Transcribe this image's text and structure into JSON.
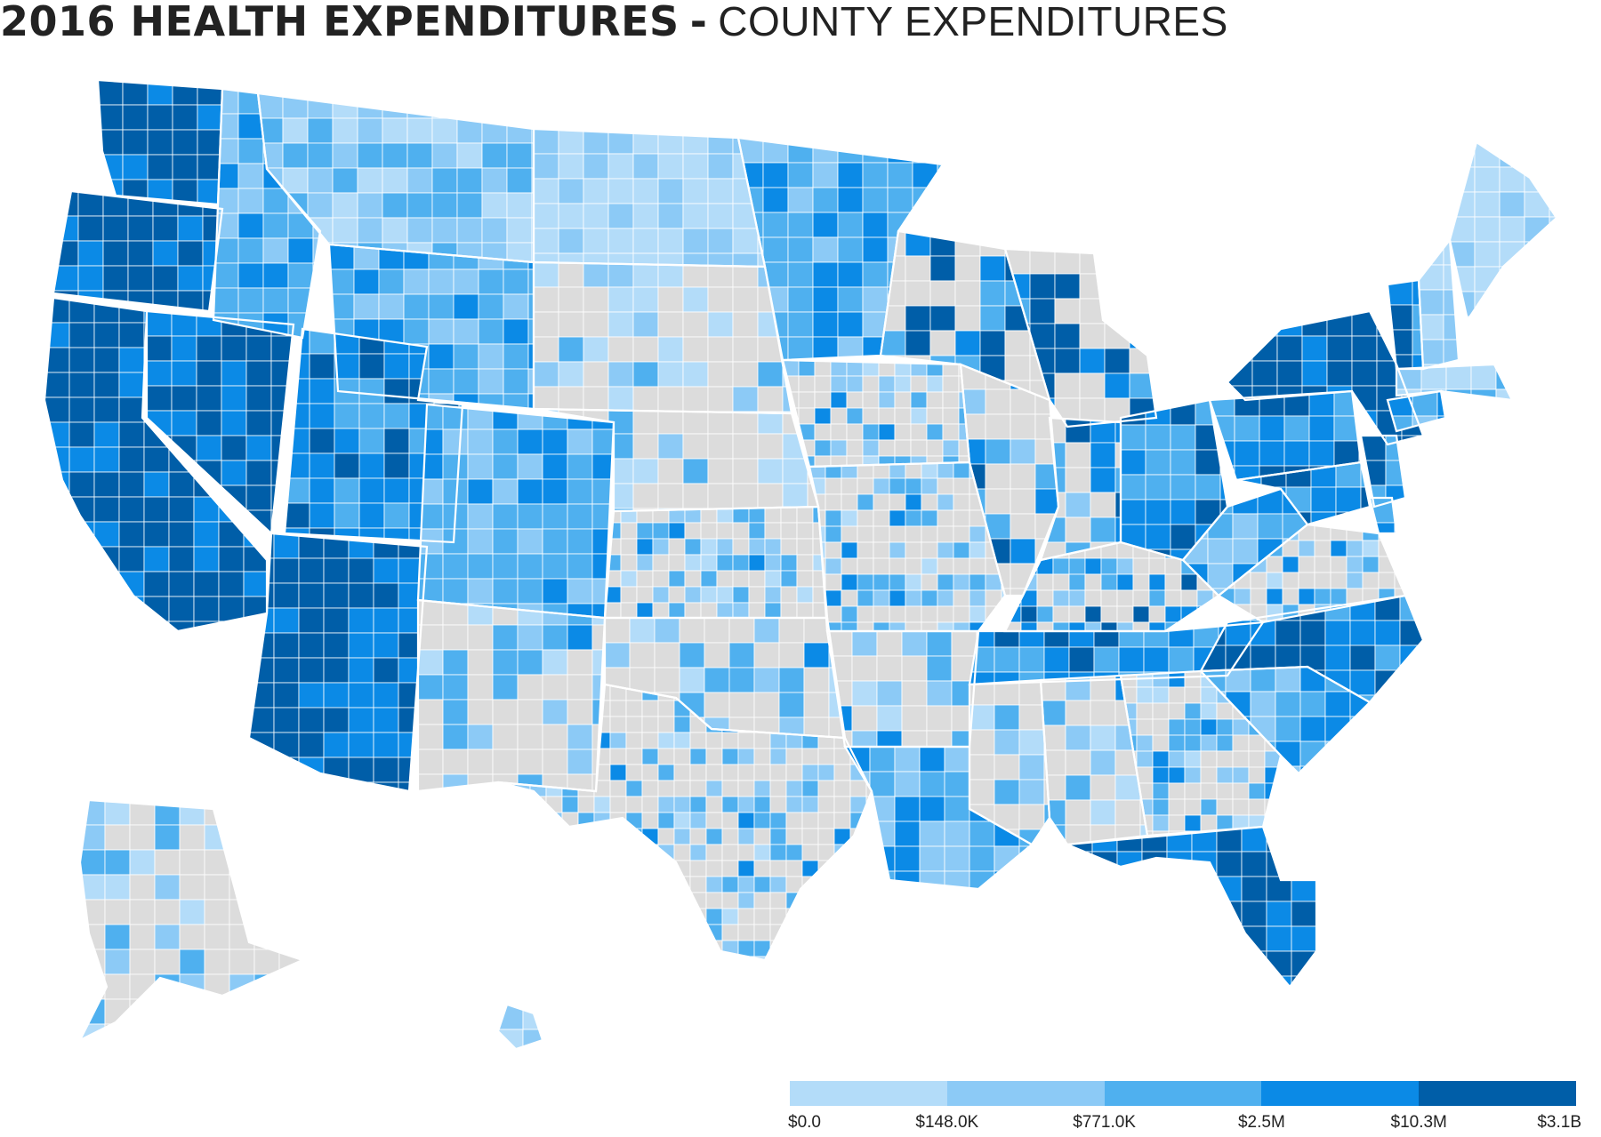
{
  "title": {
    "main": "2016 HEALTH EXPENDITURES",
    "separator": "-",
    "subtitle": "COUNTY EXPENDITURES"
  },
  "colors": {
    "no_data": "#dcdcdc",
    "border": "#ffffff",
    "scale": [
      "#b3dcf9",
      "#8ccaf6",
      "#4fb0ef",
      "#0b8ae6",
      "#005ea8"
    ]
  },
  "legend": {
    "ticks": [
      "$0.0",
      "$148.0K",
      "$771.0K",
      "$2.5M",
      "$10.3M",
      "$3.1B"
    ]
  },
  "chart_data": {
    "type": "choropleth",
    "scale_type": "quantile bins",
    "bins": [
      {
        "from": "$0.0",
        "to": "$148.0K",
        "color": "#b3dcf9"
      },
      {
        "from": "$148.0K",
        "to": "$771.0K",
        "color": "#8ccaf6"
      },
      {
        "from": "$771.0K",
        "to": "$2.5M",
        "color": "#4fb0ef"
      },
      {
        "from": "$2.5M",
        "to": "$10.3M",
        "color": "#0b8ae6"
      },
      {
        "from": "$10.3M",
        "to": "$3.1B",
        "color": "#005ea8"
      }
    ],
    "regions": [
      {
        "name": "Washington",
        "bin": 4
      },
      {
        "name": "Oregon",
        "bin": 4
      },
      {
        "name": "California",
        "bin": 4
      },
      {
        "name": "Nevada",
        "bin": 4
      },
      {
        "name": "Idaho",
        "bin": 2
      },
      {
        "name": "Montana",
        "bin": 1
      },
      {
        "name": "Wyoming",
        "bin": 2
      },
      {
        "name": "Utah",
        "bin": 3
      },
      {
        "name": "Arizona",
        "bin": 4
      },
      {
        "name": "Colorado",
        "bin": 2
      },
      {
        "name": "New Mexico",
        "bin": 1
      },
      {
        "name": "North Dakota",
        "bin": 0
      },
      {
        "name": "South Dakota",
        "bin": 0
      },
      {
        "name": "Nebraska",
        "bin": 0
      },
      {
        "name": "Kansas",
        "bin": 1
      },
      {
        "name": "Oklahoma",
        "bin": 1
      },
      {
        "name": "Texas",
        "bin": 1
      },
      {
        "name": "Minnesota",
        "bin": 2
      },
      {
        "name": "Iowa",
        "bin": 1
      },
      {
        "name": "Missouri",
        "bin": 1
      },
      {
        "name": "Arkansas",
        "bin": 1
      },
      {
        "name": "Louisiana",
        "bin": 2
      },
      {
        "name": "Wisconsin",
        "bin": 3
      },
      {
        "name": "Illinois",
        "bin": 2
      },
      {
        "name": "Michigan",
        "bin": 3
      },
      {
        "name": "Indiana",
        "bin": 2
      },
      {
        "name": "Ohio",
        "bin": 3
      },
      {
        "name": "Kentucky",
        "bin": 2
      },
      {
        "name": "Tennessee",
        "bin": 3
      },
      {
        "name": "Mississippi",
        "bin": 1
      },
      {
        "name": "Alabama",
        "bin": 1
      },
      {
        "name": "Georgia",
        "bin": 1
      },
      {
        "name": "Florida",
        "bin": 4
      },
      {
        "name": "South Carolina",
        "bin": 2
      },
      {
        "name": "North Carolina",
        "bin": 3
      },
      {
        "name": "Virginia",
        "bin": 1
      },
      {
        "name": "West Virginia",
        "bin": 2
      },
      {
        "name": "Pennsylvania",
        "bin": 3
      },
      {
        "name": "New York",
        "bin": 4
      },
      {
        "name": "Maryland",
        "bin": 3
      },
      {
        "name": "New Jersey",
        "bin": 3
      },
      {
        "name": "Delaware",
        "bin": 3
      },
      {
        "name": "Connecticut",
        "bin": 2
      },
      {
        "name": "Massachusetts",
        "bin": 1
      },
      {
        "name": "Vermont",
        "bin": 3
      },
      {
        "name": "New Hampshire",
        "bin": 1
      },
      {
        "name": "Maine",
        "bin": 0
      },
      {
        "name": "Alaska",
        "bin": 1
      },
      {
        "name": "Hawaii",
        "bin": 0
      }
    ]
  }
}
